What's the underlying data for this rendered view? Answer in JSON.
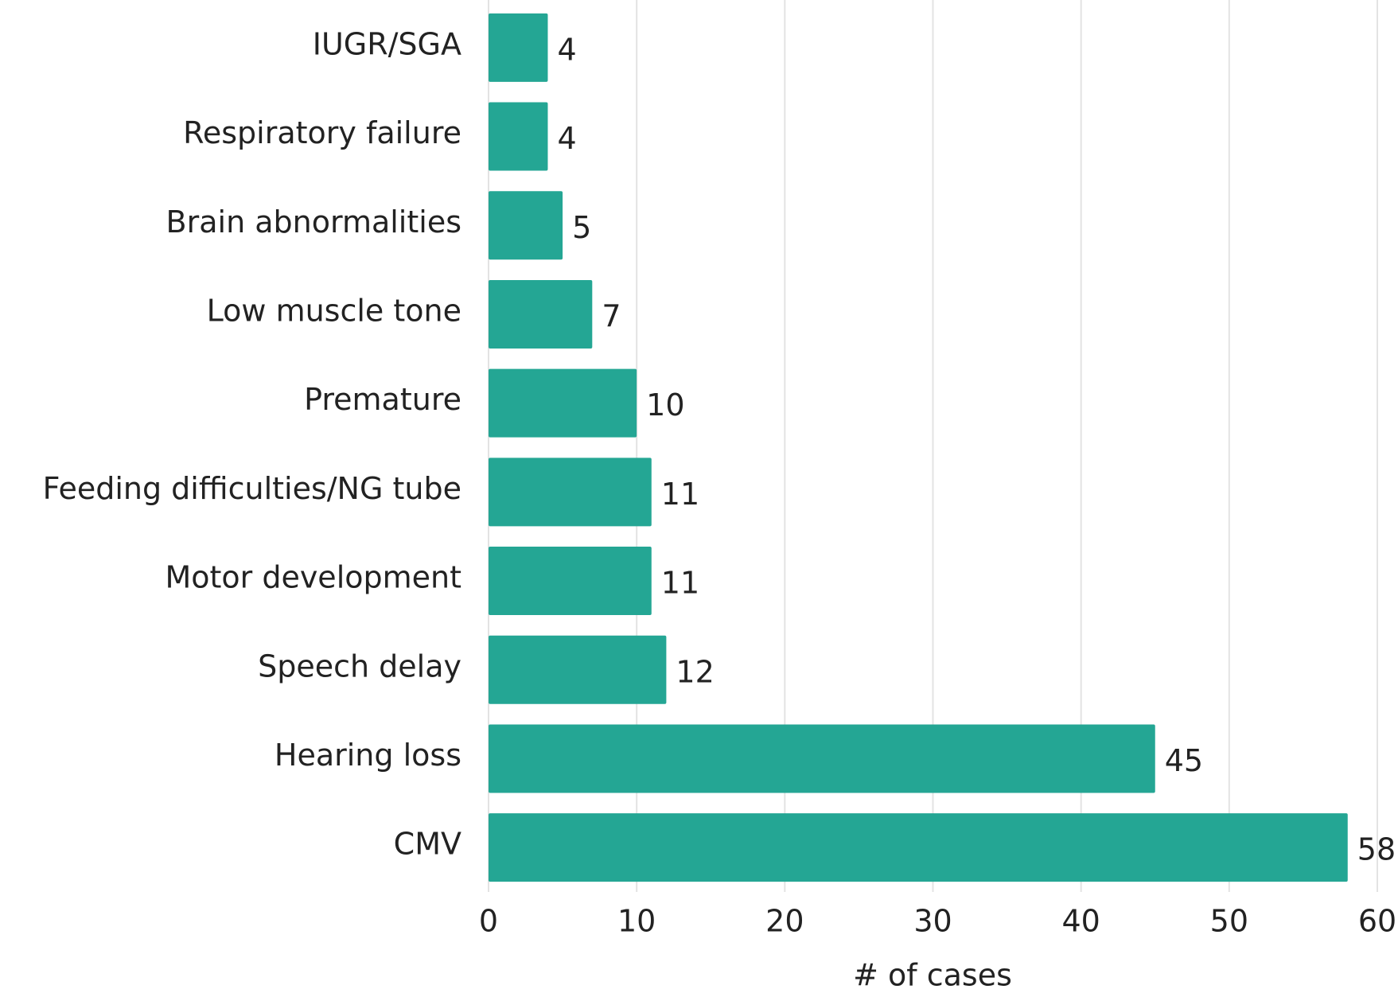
{
  "chart_data": {
    "type": "hbar",
    "xlabel": "# of cases",
    "categories": [
      "IUGR/SGA",
      "Respiratory failure",
      "Brain abnormalities",
      "Low muscle tone",
      "Premature",
      "Feeding difficulties/NG tube",
      "Motor development",
      "Speech delay",
      "Hearing loss",
      "CMV"
    ],
    "values": [
      4,
      4,
      5,
      7,
      10,
      11,
      11,
      12,
      45,
      58
    ],
    "color": "#24a694",
    "xlim": [
      0,
      60
    ],
    "xticks": [
      0,
      10,
      20,
      30,
      40,
      50,
      60
    ],
    "grid": true
  }
}
